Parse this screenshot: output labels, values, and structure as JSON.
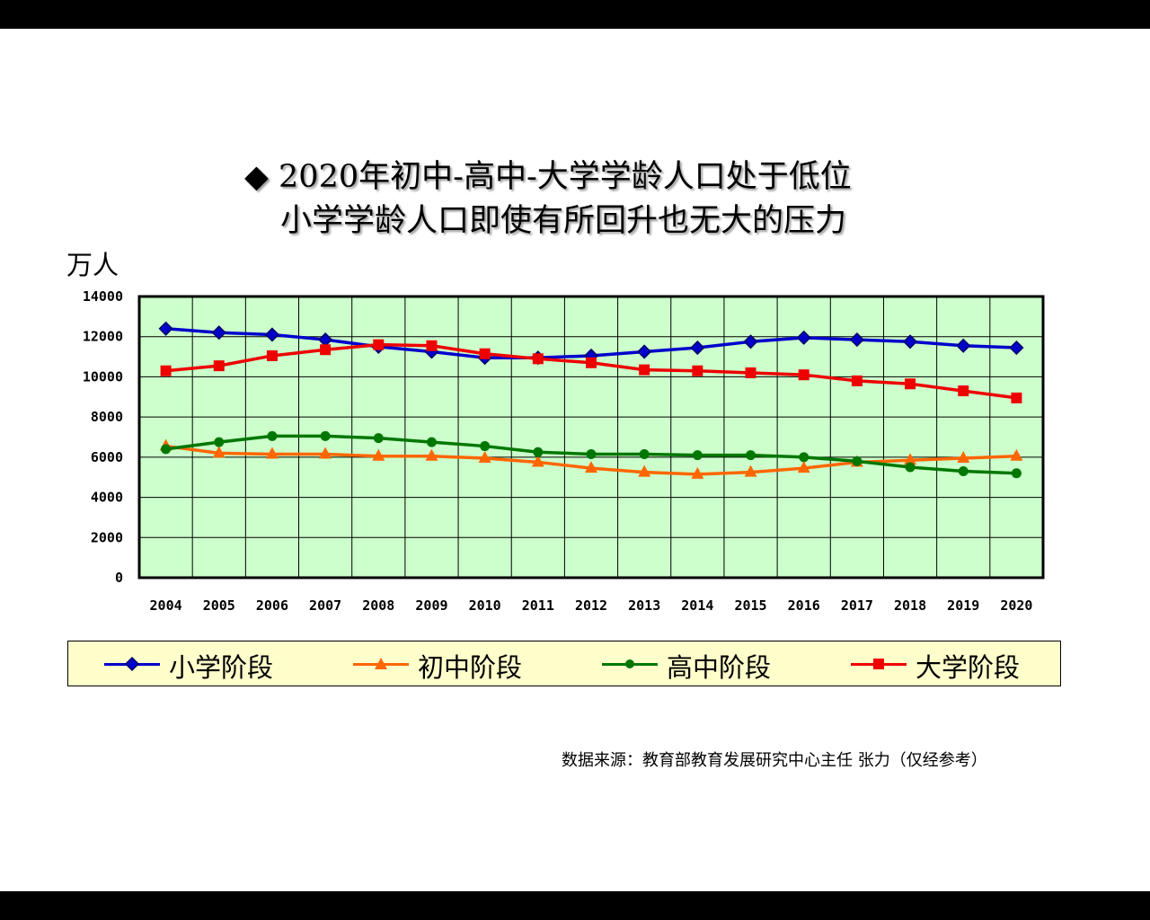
{
  "title_line1": "◆ 2020年初中-高中-大学学龄人口处于低位",
  "title_line2": "小学学龄人口即使有所回升也无大的压力",
  "unit_label": "万人",
  "source": "数据来源：教育部教育发展研究中心主任 张力（仅经参考）",
  "chart_data": {
    "type": "line",
    "categories": [
      "2004",
      "2005",
      "2006",
      "2007",
      "2008",
      "2009",
      "2010",
      "2011",
      "2012",
      "2013",
      "2014",
      "2015",
      "2016",
      "2017",
      "2018",
      "2019",
      "2020"
    ],
    "ylim": [
      0,
      14000
    ],
    "yticks": [
      "0",
      "2000",
      "4000",
      "6000",
      "8000",
      "10000",
      "12000",
      "14000"
    ],
    "ylabel": "万人",
    "grid": true,
    "plot_background": "#ccffcc",
    "legend": "bottom",
    "series": [
      {
        "name": "小学阶段",
        "color": "#0000cc",
        "marker": "diamond",
        "values": [
          12400,
          12200,
          12100,
          11850,
          11500,
          11250,
          10950,
          10950,
          11050,
          11250,
          11450,
          11750,
          11950,
          11850,
          11750,
          11550,
          11450
        ]
      },
      {
        "name": "初中阶段",
        "color": "#ff6600",
        "marker": "triangle",
        "values": [
          6550,
          6200,
          6150,
          6150,
          6050,
          6050,
          5950,
          5750,
          5450,
          5250,
          5150,
          5250,
          5450,
          5750,
          5850,
          5950,
          6050
        ]
      },
      {
        "name": "高中阶段",
        "color": "#007700",
        "marker": "circle",
        "values": [
          6400,
          6750,
          7050,
          7050,
          6950,
          6750,
          6550,
          6250,
          6150,
          6150,
          6100,
          6100,
          6000,
          5800,
          5500,
          5300,
          5200
        ]
      },
      {
        "name": "大学阶段",
        "color": "#ee0000",
        "marker": "square",
        "values": [
          10300,
          10550,
          11050,
          11350,
          11600,
          11550,
          11150,
          10900,
          10700,
          10350,
          10300,
          10200,
          10100,
          9800,
          9650,
          9300,
          8950
        ]
      }
    ]
  }
}
